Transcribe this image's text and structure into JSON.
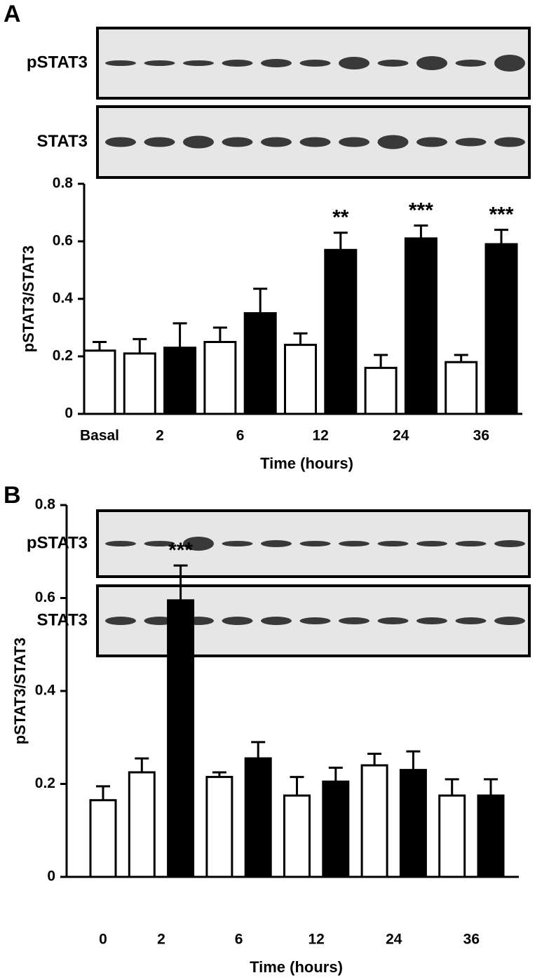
{
  "chart_data": [
    {
      "type": "bar",
      "panel": "A",
      "blot_labels": [
        "pSTAT3",
        "STAT3"
      ],
      "ylabel": "pSTAT3/STAT3",
      "xlabel": "Time (hours)",
      "categories": [
        "Basal",
        "2",
        "6",
        "12",
        "24",
        "36"
      ],
      "series": [
        {
          "color": "#ffffff",
          "values": [
            0.22,
            0.21,
            0.25,
            0.24,
            0.16,
            0.18
          ],
          "errors": [
            0.03,
            0.05,
            0.05,
            0.04,
            0.045,
            0.025
          ]
        },
        {
          "color": "#000000",
          "values": [
            null,
            0.23,
            0.35,
            0.57,
            0.61,
            0.59
          ],
          "errors": [
            null,
            0.085,
            0.085,
            0.06,
            0.045,
            0.05
          ],
          "significance": [
            null,
            null,
            null,
            "**",
            "***",
            "***"
          ]
        }
      ],
      "ylim": [
        0,
        0.8
      ],
      "yticks": [
        0,
        0.2,
        0.4,
        0.6,
        0.8
      ]
    },
    {
      "type": "bar",
      "panel": "B",
      "blot_labels": [
        "pSTAT3",
        "STAT3"
      ],
      "ylabel": "pSTAT3/STAT3",
      "xlabel": "Time (hours)",
      "categories": [
        "0",
        "2",
        "6",
        "12",
        "24",
        "36"
      ],
      "series": [
        {
          "color": "#ffffff",
          "values": [
            0.165,
            0.225,
            0.215,
            0.175,
            0.24,
            0.175
          ],
          "errors": [
            0.03,
            0.03,
            0.01,
            0.04,
            0.025,
            0.035
          ]
        },
        {
          "color": "#000000",
          "values": [
            null,
            0.595,
            0.255,
            0.205,
            0.23,
            0.175
          ],
          "errors": [
            null,
            0.075,
            0.035,
            0.03,
            0.04,
            0.035
          ],
          "significance": [
            null,
            "***",
            null,
            null,
            null,
            null
          ]
        }
      ],
      "ylim": [
        0,
        0.8
      ],
      "yticks": [
        0,
        0.2,
        0.4,
        0.6,
        0.8
      ]
    }
  ]
}
